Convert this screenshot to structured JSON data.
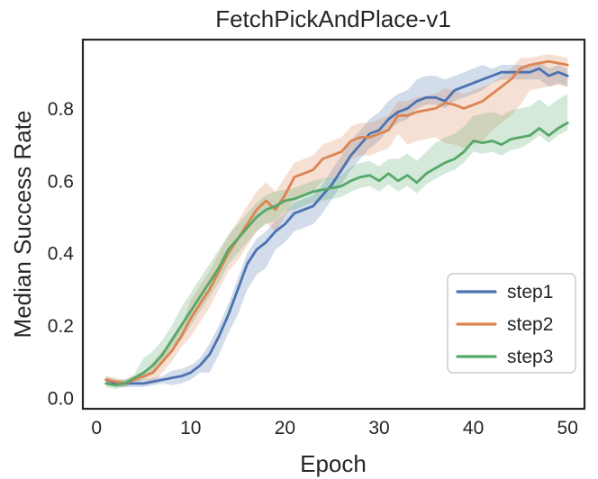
{
  "chart_data": {
    "type": "line",
    "title": "FetchPickAndPlace-v1",
    "xlabel": "Epoch",
    "ylabel": "Median Success Rate",
    "xlim": [
      -1.45,
      51.8
    ],
    "ylim": [
      -0.03,
      0.99
    ],
    "xticks": [
      "0",
      "10",
      "20",
      "30",
      "40",
      "50"
    ],
    "xtick_values": [
      0,
      10,
      20,
      30,
      40,
      50
    ],
    "yticks": [
      "0.0",
      "0.2",
      "0.4",
      "0.6",
      "0.8"
    ],
    "ytick_values": [
      0.0,
      0.2,
      0.4,
      0.6,
      0.8
    ],
    "grid": false,
    "legend_position": "lower right",
    "band_opacity": 0.25,
    "axis_color": "#262626",
    "background": "#ffffff",
    "x": [
      1,
      2,
      3,
      4,
      5,
      6,
      7,
      8,
      9,
      10,
      11,
      12,
      13,
      14,
      15,
      16,
      17,
      18,
      19,
      20,
      21,
      22,
      23,
      24,
      25,
      26,
      27,
      28,
      29,
      30,
      31,
      32,
      33,
      34,
      35,
      36,
      37,
      38,
      39,
      40,
      41,
      42,
      43,
      44,
      45,
      46,
      47,
      48,
      49,
      50
    ],
    "series": [
      {
        "name": "step1",
        "color": "#4C72B0",
        "values": [
          0.05,
          0.04,
          0.04,
          0.04,
          0.04,
          0.045,
          0.05,
          0.055,
          0.06,
          0.07,
          0.09,
          0.12,
          0.17,
          0.23,
          0.3,
          0.37,
          0.41,
          0.43,
          0.46,
          0.48,
          0.51,
          0.52,
          0.53,
          0.56,
          0.59,
          0.63,
          0.67,
          0.7,
          0.73,
          0.74,
          0.77,
          0.79,
          0.8,
          0.82,
          0.83,
          0.83,
          0.82,
          0.85,
          0.86,
          0.87,
          0.88,
          0.89,
          0.9,
          0.9,
          0.9,
          0.9,
          0.91,
          0.89,
          0.9,
          0.89
        ],
        "band_lower": [
          0.04,
          0.03,
          0.03,
          0.03,
          0.03,
          0.035,
          0.04,
          0.035,
          0.04,
          0.05,
          0.07,
          0.07,
          0.12,
          0.18,
          0.23,
          0.3,
          0.34,
          0.36,
          0.41,
          0.43,
          0.46,
          0.47,
          0.48,
          0.51,
          0.55,
          0.59,
          0.63,
          0.66,
          0.69,
          0.71,
          0.74,
          0.76,
          0.77,
          0.8,
          0.81,
          0.81,
          0.8,
          0.82,
          0.83,
          0.84,
          0.85,
          0.87,
          0.88,
          0.88,
          0.88,
          0.88,
          0.88,
          0.86,
          0.87,
          0.86
        ],
        "band_upper": [
          0.06,
          0.05,
          0.05,
          0.05,
          0.05,
          0.055,
          0.06,
          0.075,
          0.08,
          0.09,
          0.11,
          0.15,
          0.2,
          0.26,
          0.33,
          0.4,
          0.44,
          0.46,
          0.49,
          0.51,
          0.54,
          0.55,
          0.56,
          0.59,
          0.63,
          0.67,
          0.71,
          0.74,
          0.77,
          0.79,
          0.82,
          0.84,
          0.85,
          0.88,
          0.89,
          0.89,
          0.88,
          0.89,
          0.9,
          0.91,
          0.92,
          0.91,
          0.92,
          0.92,
          0.92,
          0.92,
          0.93,
          0.91,
          0.92,
          0.91
        ]
      },
      {
        "name": "step2",
        "color": "#DD8452",
        "values": [
          0.05,
          0.045,
          0.04,
          0.05,
          0.06,
          0.07,
          0.1,
          0.13,
          0.17,
          0.22,
          0.26,
          0.3,
          0.35,
          0.4,
          0.44,
          0.48,
          0.52,
          0.545,
          0.52,
          0.56,
          0.61,
          0.62,
          0.63,
          0.66,
          0.67,
          0.68,
          0.71,
          0.72,
          0.72,
          0.73,
          0.74,
          0.78,
          0.78,
          0.79,
          0.795,
          0.8,
          0.815,
          0.81,
          0.8,
          0.81,
          0.82,
          0.84,
          0.86,
          0.88,
          0.91,
          0.92,
          0.925,
          0.93,
          0.925,
          0.92
        ],
        "band_lower": [
          0.04,
          0.035,
          0.03,
          0.04,
          0.05,
          0.04,
          0.07,
          0.1,
          0.14,
          0.17,
          0.21,
          0.25,
          0.3,
          0.35,
          0.38,
          0.42,
          0.46,
          0.485,
          0.46,
          0.5,
          0.55,
          0.56,
          0.57,
          0.6,
          0.61,
          0.62,
          0.66,
          0.67,
          0.67,
          0.68,
          0.69,
          0.73,
          0.7,
          0.71,
          0.715,
          0.72,
          0.705,
          0.7,
          0.69,
          0.7,
          0.71,
          0.74,
          0.76,
          0.78,
          0.81,
          0.85,
          0.855,
          0.86,
          0.865,
          0.86
        ],
        "band_upper": [
          0.06,
          0.055,
          0.05,
          0.06,
          0.07,
          0.1,
          0.13,
          0.16,
          0.2,
          0.27,
          0.31,
          0.35,
          0.4,
          0.45,
          0.49,
          0.53,
          0.57,
          0.595,
          0.57,
          0.61,
          0.65,
          0.66,
          0.67,
          0.7,
          0.71,
          0.72,
          0.75,
          0.76,
          0.76,
          0.77,
          0.78,
          0.82,
          0.82,
          0.83,
          0.835,
          0.84,
          0.855,
          0.85,
          0.84,
          0.85,
          0.86,
          0.87,
          0.89,
          0.91,
          0.94,
          0.94,
          0.945,
          0.95,
          0.945,
          0.94
        ]
      },
      {
        "name": "step3",
        "color": "#55A868",
        "values": [
          0.04,
          0.035,
          0.04,
          0.055,
          0.07,
          0.09,
          0.12,
          0.16,
          0.2,
          0.24,
          0.28,
          0.32,
          0.36,
          0.41,
          0.44,
          0.47,
          0.5,
          0.52,
          0.53,
          0.545,
          0.55,
          0.56,
          0.57,
          0.575,
          0.58,
          0.585,
          0.6,
          0.61,
          0.615,
          0.6,
          0.62,
          0.6,
          0.615,
          0.595,
          0.62,
          0.635,
          0.65,
          0.66,
          0.68,
          0.71,
          0.705,
          0.71,
          0.7,
          0.715,
          0.72,
          0.725,
          0.745,
          0.725,
          0.745,
          0.76
        ],
        "band_lower": [
          0.03,
          0.025,
          0.03,
          0.045,
          0.05,
          0.07,
          0.1,
          0.14,
          0.16,
          0.2,
          0.24,
          0.28,
          0.32,
          0.37,
          0.4,
          0.43,
          0.46,
          0.48,
          0.49,
          0.515,
          0.52,
          0.53,
          0.54,
          0.545,
          0.55,
          0.555,
          0.57,
          0.58,
          0.585,
          0.57,
          0.59,
          0.57,
          0.585,
          0.565,
          0.59,
          0.605,
          0.62,
          0.63,
          0.65,
          0.68,
          0.675,
          0.68,
          0.67,
          0.685,
          0.69,
          0.705,
          0.725,
          0.705,
          0.725,
          0.74
        ],
        "band_upper": [
          0.05,
          0.045,
          0.05,
          0.065,
          0.11,
          0.13,
          0.16,
          0.2,
          0.25,
          0.29,
          0.33,
          0.37,
          0.41,
          0.45,
          0.48,
          0.51,
          0.54,
          0.56,
          0.57,
          0.575,
          0.58,
          0.59,
          0.6,
          0.605,
          0.61,
          0.615,
          0.64,
          0.65,
          0.655,
          0.64,
          0.66,
          0.66,
          0.675,
          0.655,
          0.68,
          0.705,
          0.72,
          0.73,
          0.75,
          0.78,
          0.785,
          0.79,
          0.78,
          0.795,
          0.8,
          0.805,
          0.825,
          0.805,
          0.825,
          0.84
        ]
      }
    ],
    "legend": {
      "entries": [
        "step1",
        "step2",
        "step3"
      ],
      "border_color": "#cccccc",
      "background": "#ffffff"
    }
  }
}
